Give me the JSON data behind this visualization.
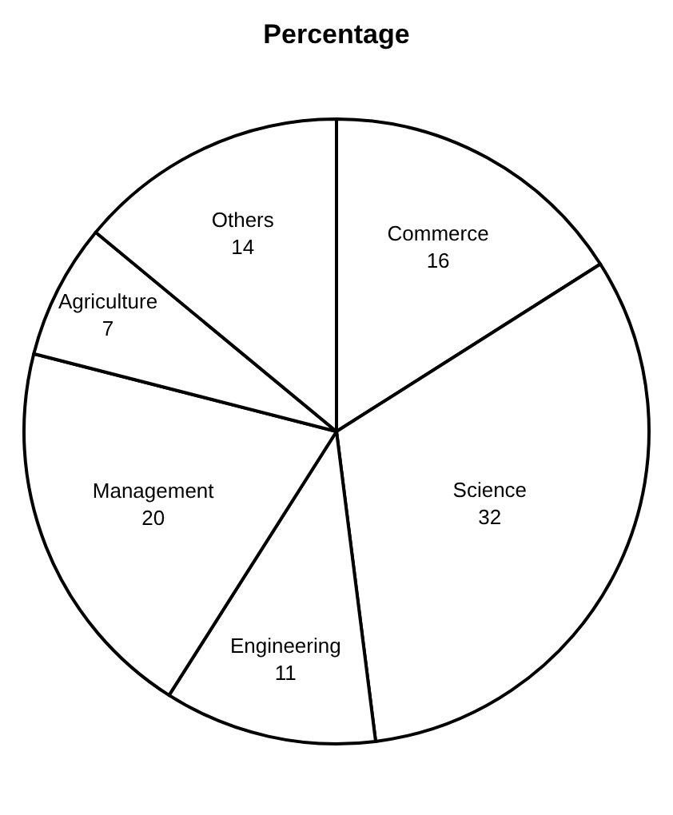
{
  "chart_data": {
    "type": "pie",
    "title": "Percentage",
    "categories": [
      "Commerce",
      "Science",
      "Engineering",
      "Management",
      "Agriculture",
      "Others"
    ],
    "values": [
      16,
      32,
      11,
      20,
      7,
      14
    ],
    "colors": [
      "#ffffff",
      "#ffffff",
      "#ffffff",
      "#ffffff",
      "#ffffff",
      "#ffffff"
    ],
    "data_labels": true
  }
}
